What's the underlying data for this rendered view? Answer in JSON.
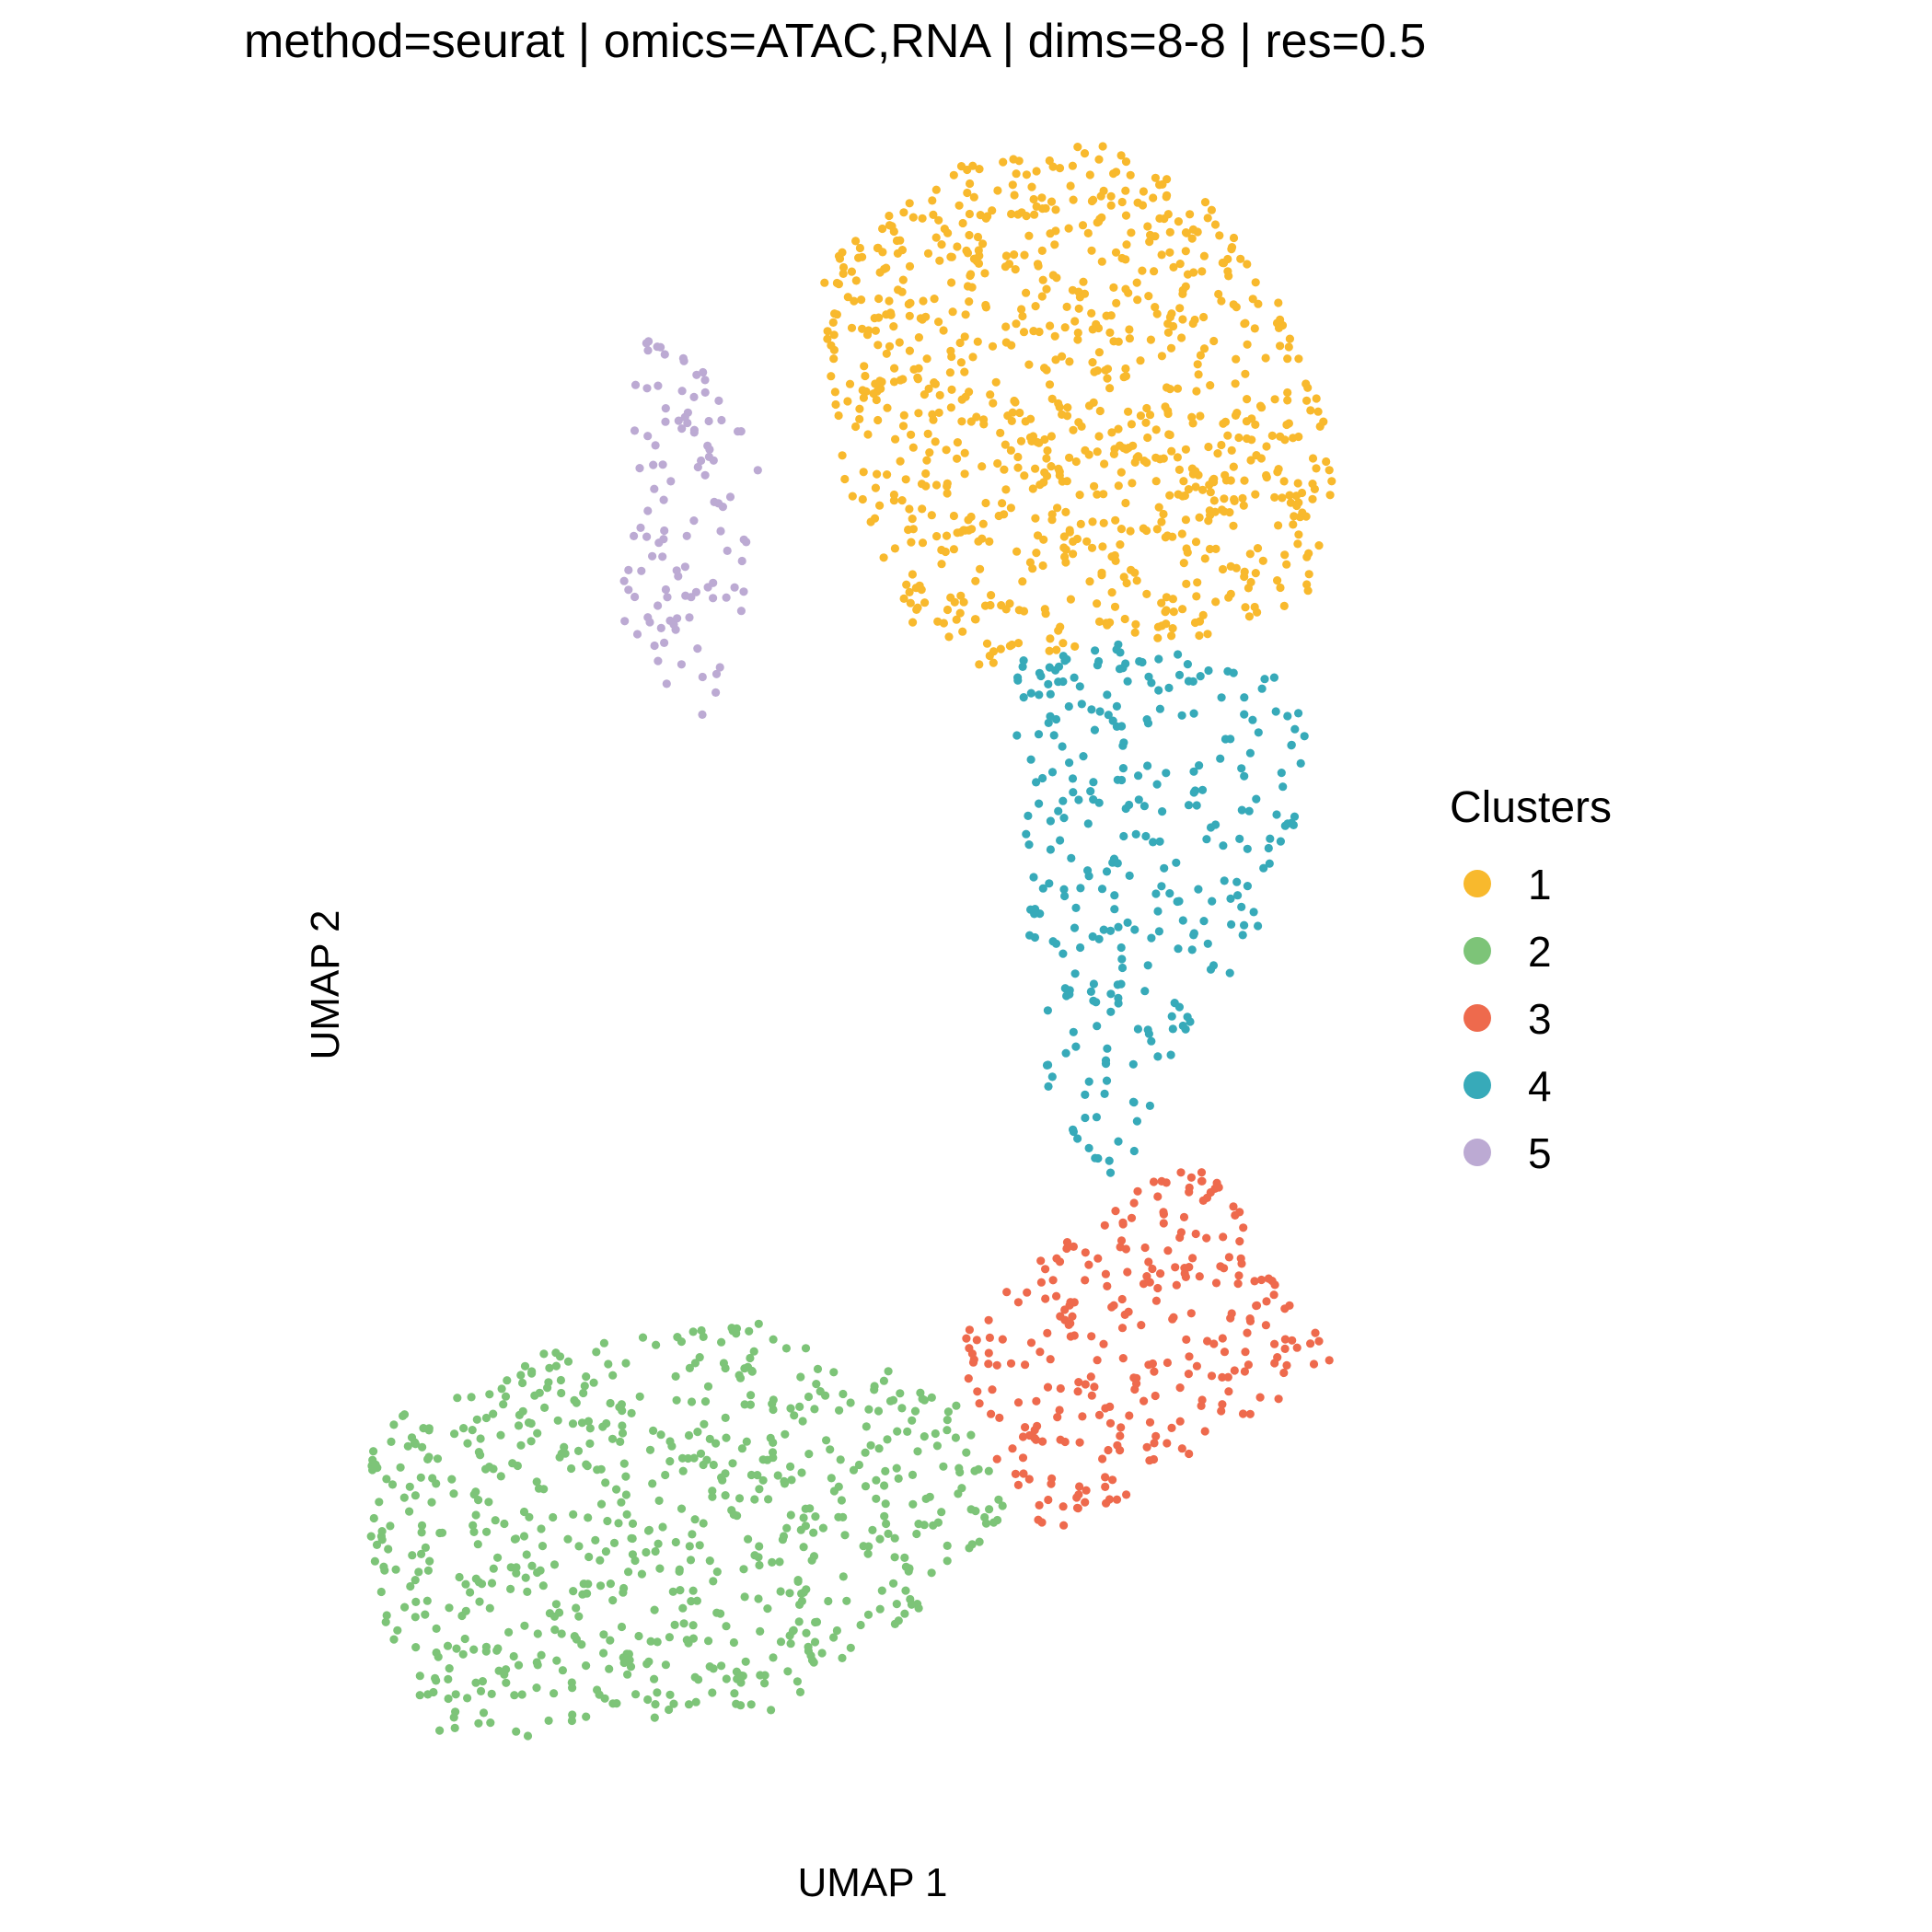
{
  "chart_data": {
    "type": "scatter",
    "title": "method=seurat | omics=ATAC,RNA | dims=8-8 | res=0.5",
    "xlabel": "UMAP 1",
    "ylabel": "UMAP 2",
    "grid": false,
    "legend": {
      "title": "Clusters",
      "placement": "right"
    },
    "series": [
      {
        "name": "1",
        "color": "#F8B92D",
        "approx_count": 900,
        "x_range": [
          2.2,
          9.2
        ],
        "y_range": [
          3.8,
          10.5
        ],
        "shape": "dense upper mass"
      },
      {
        "name": "2",
        "color": "#7DC478",
        "approx_count": 700,
        "x_range": [
          -3.5,
          4.8
        ],
        "y_range": [
          -10.0,
          -4.4
        ],
        "shape": "lower-left elongated mass"
      },
      {
        "name": "3",
        "color": "#EE6A4D",
        "approx_count": 280,
        "x_range": [
          3.6,
          9.2
        ],
        "y_range": [
          -7.2,
          -2.2
        ],
        "shape": "lower-right wedge"
      },
      {
        "name": "4",
        "color": "#37AAB9",
        "approx_count": 300,
        "x_range": [
          4.9,
          9.0
        ],
        "y_range": [
          -2.6,
          4.0
        ],
        "shape": "tapering bridge"
      },
      {
        "name": "5",
        "color": "#BCAAD3",
        "approx_count": 110,
        "x_range": [
          -0.4,
          1.8
        ],
        "y_range": [
          3.2,
          8.3
        ],
        "shape": "thin arc on left"
      }
    ]
  }
}
